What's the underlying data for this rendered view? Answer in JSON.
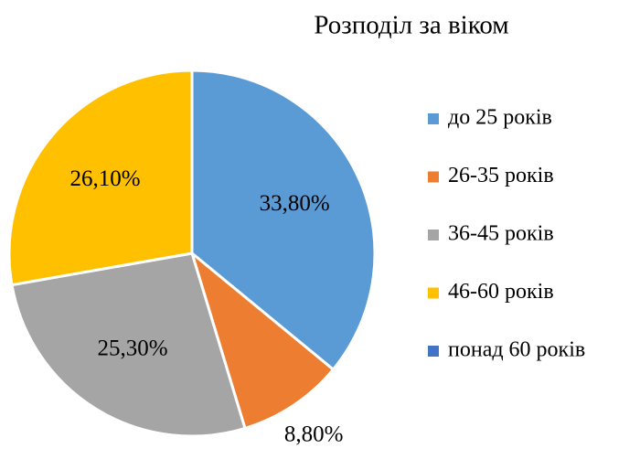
{
  "chart_data": {
    "type": "pie",
    "title": "Розподіл за віком",
    "categories": [
      "до 25 років",
      "26-35 років",
      "36-45 років",
      "46-60 років",
      "понад 60 років"
    ],
    "values": [
      33.8,
      8.8,
      25.3,
      26.1,
      0
    ],
    "value_labels": [
      "33,80%",
      "8,80%",
      "25,30%",
      "26,10%",
      null
    ],
    "colors": [
      "#5b9bd5",
      "#ed7d31",
      "#a5a5a5",
      "#ffc000",
      "#4472c4"
    ],
    "legend": "right"
  }
}
